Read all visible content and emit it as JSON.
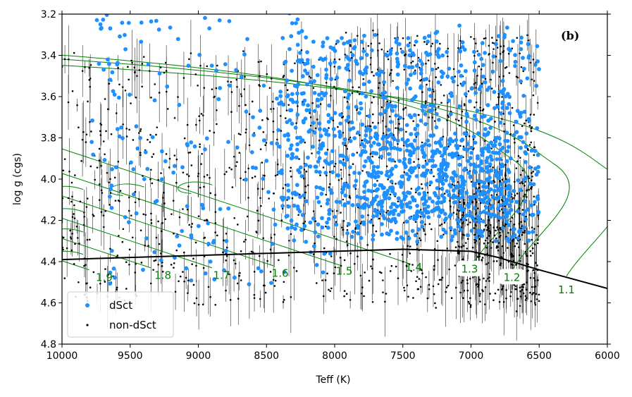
{
  "chart_data": {
    "type": "scatter",
    "title": "",
    "panel_label": "(b)",
    "xlabel": "Teff (K)",
    "ylabel": "log g (cgs)",
    "xlim": [
      10000,
      6000
    ],
    "ylim": [
      4.8,
      3.2
    ],
    "x_inverted": true,
    "y_inverted": true,
    "xticks": [
      10000,
      9500,
      9000,
      8500,
      8000,
      7500,
      7000,
      6500,
      6000
    ],
    "yticks": [
      3.2,
      3.4,
      3.6,
      3.8,
      4.0,
      4.2,
      4.4,
      4.6,
      4.8
    ],
    "grid": false,
    "legend": {
      "placement": "lower-left",
      "entries": [
        {
          "label": "dSct",
          "color": "#1e90ff",
          "marker": "large-dot"
        },
        {
          "label": "non-dSct",
          "color": "#000000",
          "marker": "small-dot"
        }
      ]
    },
    "colors": {
      "dsct": "#1e90ff",
      "non_dsct": "#000000",
      "tracks": "#008000",
      "zams": "#000000"
    },
    "series": [
      {
        "name": "dSct",
        "sampled": true,
        "density_regions": [
          {
            "teff": [
              9800,
              8000
            ],
            "logg": [
              3.2,
              4.5
            ],
            "weight": 0.15
          },
          {
            "teff": [
              8400,
              6500
            ],
            "logg": [
              3.3,
              4.3
            ],
            "weight": 0.55
          },
          {
            "teff": [
              7800,
              6700
            ],
            "logg": [
              3.8,
              4.2
            ],
            "weight": 0.3
          }
        ],
        "count": 1400
      },
      {
        "name": "non-dSct",
        "sampled": true,
        "density_regions": [
          {
            "teff": [
              10000,
              8000
            ],
            "logg": [
              3.4,
              4.6
            ],
            "weight": 0.35
          },
          {
            "teff": [
              8000,
              6500
            ],
            "logg": [
              3.3,
              4.6
            ],
            "weight": 0.45
          },
          {
            "teff": [
              7100,
              6500
            ],
            "logg": [
              4.0,
              4.6
            ],
            "weight": 0.2
          }
        ],
        "count": 1600
      }
    ],
    "zams_line": {
      "teff": [
        10000,
        9000,
        8000,
        7500,
        7000,
        6800,
        6500,
        6000
      ],
      "logg": [
        4.39,
        4.37,
        4.35,
        4.34,
        4.35,
        4.38,
        4.44,
        4.53
      ]
    },
    "evolutionary_tracks": [
      {
        "mass_label": "1.9",
        "zams": [
          9800,
          4.44
        ]
      },
      {
        "mass_label": "1.8",
        "zams": [
          9350,
          4.43
        ]
      },
      {
        "mass_label": "1.7",
        "zams": [
          8900,
          4.43
        ]
      },
      {
        "mass_label": "1.6",
        "zams": [
          8450,
          4.42
        ]
      },
      {
        "mass_label": "1.5",
        "zams": [
          7950,
          4.42
        ]
      },
      {
        "mass_label": "1.4",
        "zams": [
          7450,
          4.41
        ]
      },
      {
        "mass_label": "1.3",
        "zams": [
          7000,
          4.42
        ]
      },
      {
        "mass_label": "1.2",
        "zams": [
          6700,
          4.44
        ]
      },
      {
        "mass_label": "1.1",
        "zams": [
          6300,
          4.47
        ]
      }
    ],
    "mass_label_positions": [
      {
        "label": "1.9",
        "teff": 9690,
        "logg": 4.48,
        "boxed": false
      },
      {
        "label": "1.8",
        "teff": 9260,
        "logg": 4.47,
        "boxed": false
      },
      {
        "label": "1.7",
        "teff": 8830,
        "logg": 4.47,
        "boxed": false
      },
      {
        "label": "1.6",
        "teff": 8400,
        "logg": 4.46,
        "boxed": false
      },
      {
        "label": "1.5",
        "teff": 7930,
        "logg": 4.45,
        "boxed": false
      },
      {
        "label": "1.4",
        "teff": 7420,
        "logg": 4.43,
        "boxed": false
      },
      {
        "label": "1.3",
        "teff": 7010,
        "logg": 4.44,
        "boxed": true
      },
      {
        "label": "1.2",
        "teff": 6700,
        "logg": 4.48,
        "boxed": true
      },
      {
        "label": "1.1",
        "teff": 6300,
        "logg": 4.54,
        "boxed": false
      }
    ]
  }
}
